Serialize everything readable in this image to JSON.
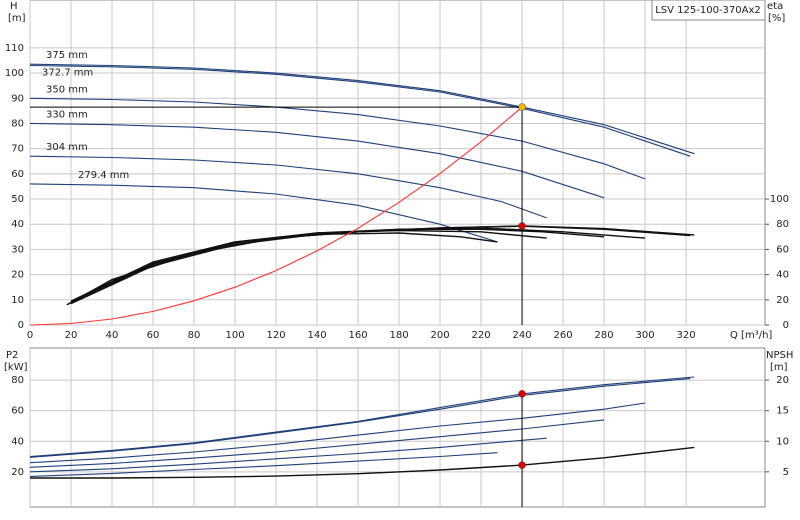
{
  "chart_data": [
    {
      "type": "line",
      "title": "LSV 125-100-370Ax2",
      "x_label": "Q [m³/h]",
      "y_label": "H",
      "y_unit": "[m]",
      "y2_label": "eta",
      "y2_unit": "[%]",
      "xlim": [
        0,
        358.5
      ],
      "xticks": [
        0,
        20,
        40,
        60,
        80,
        100,
        120,
        140,
        160,
        180,
        200,
        220,
        240,
        260,
        280,
        300,
        320
      ],
      "ylim": [
        0,
        129
      ],
      "yticks": [
        0,
        10,
        20,
        30,
        40,
        50,
        60,
        70,
        80,
        90,
        100,
        110
      ],
      "y2lim": [
        0,
        258
      ],
      "y2ticks": [
        0,
        20,
        40,
        60,
        80,
        100
      ],
      "grid": true,
      "series": [
        {
          "name": "375 mm",
          "color": "#1f3f7a",
          "x": [
            0,
            40,
            80,
            120,
            160,
            200,
            240,
            280,
            324
          ],
          "values": [
            103.5,
            103,
            102,
            100,
            97,
            93,
            86.5,
            79.5,
            68
          ]
        },
        {
          "name": "372.7 mm",
          "color": "#1f3f7a",
          "x": [
            0,
            40,
            80,
            120,
            160,
            200,
            240,
            280,
            322
          ],
          "values": [
            103,
            102.5,
            101.5,
            99.5,
            96.5,
            92.5,
            86,
            78.5,
            67
          ]
        },
        {
          "name": "350 mm",
          "color": "#1f3f7a",
          "x": [
            0,
            40,
            80,
            120,
            160,
            200,
            240,
            280,
            300
          ],
          "values": [
            90,
            89.5,
            88.5,
            86.5,
            83.5,
            79,
            73,
            64,
            58
          ]
        },
        {
          "name": "330 mm",
          "color": "#1f3f7a",
          "x": [
            0,
            40,
            80,
            120,
            160,
            200,
            240,
            280
          ],
          "values": [
            80,
            79.5,
            78.5,
            76.5,
            73,
            68,
            61,
            50.5
          ]
        },
        {
          "name": "304 mm",
          "color": "#1f3f7a",
          "x": [
            0,
            40,
            80,
            120,
            160,
            200,
            230,
            252
          ],
          "values": [
            67,
            66.5,
            65.5,
            63.5,
            60,
            54.5,
            49,
            42.5
          ]
        },
        {
          "name": "279.4 mm",
          "color": "#1f3f7a",
          "x": [
            0,
            40,
            80,
            120,
            160,
            200,
            228
          ],
          "values": [
            56,
            55.5,
            54.5,
            52,
            47.5,
            40,
            33
          ]
        },
        {
          "color": "#111111",
          "axis": "y2",
          "x": [
            18,
            40,
            80,
            120,
            160,
            200,
            240,
            280,
            324
          ],
          "values": [
            16,
            36,
            57,
            69,
            74,
            77,
            78.6,
            76.5,
            71.5
          ]
        },
        {
          "color": "#111111",
          "axis": "y2",
          "x": [
            18,
            40,
            80,
            120,
            160,
            200,
            240,
            280,
            322
          ],
          "values": [
            16,
            36,
            57,
            69,
            74,
            77,
            78.4,
            76,
            71
          ]
        },
        {
          "color": "#111111",
          "axis": "y2",
          "x": [
            20,
            60,
            100,
            140,
            180,
            220,
            260,
            300
          ],
          "values": [
            17,
            47,
            64,
            72,
            76,
            77,
            74,
            69
          ]
        },
        {
          "color": "#111111",
          "axis": "y2",
          "x": [
            20,
            60,
            100,
            140,
            180,
            220,
            250,
            280
          ],
          "values": [
            18,
            48,
            65,
            73,
            76,
            76,
            74,
            70
          ]
        },
        {
          "color": "#111111",
          "axis": "y2",
          "x": [
            20,
            60,
            100,
            140,
            180,
            220,
            252
          ],
          "values": [
            18,
            49,
            66,
            73,
            75,
            74,
            69
          ]
        },
        {
          "color": "#111111",
          "axis": "y2",
          "x": [
            20,
            60,
            100,
            140,
            180,
            210,
            228
          ],
          "values": [
            19,
            50,
            66,
            72,
            73,
            70,
            66
          ]
        },
        {
          "color": "#ff3333",
          "x": [
            0,
            20,
            40,
            60,
            80,
            100,
            120,
            140,
            160,
            180,
            200,
            220,
            240
          ],
          "values": [
            0,
            0.6,
            2.4,
            5.4,
            9.6,
            15,
            21.6,
            29.4,
            38.4,
            48.7,
            60.1,
            72.7,
            86.5
          ]
        }
      ],
      "markers": [
        {
          "x": 240,
          "y": 86.5,
          "color": "#f5b800"
        },
        {
          "x": 240,
          "y": 78.6,
          "axis": "y2",
          "color": "#e00000"
        }
      ]
    },
    {
      "type": "line",
      "y_label": "P2",
      "y_unit": "[kW]",
      "y2_label": "NPSH",
      "y2_unit": "[m]",
      "xlim": [
        0,
        358.5
      ],
      "xticks": [
        0,
        20,
        40,
        60,
        80,
        100,
        120,
        140,
        160,
        180,
        200,
        220,
        240,
        260,
        280,
        300,
        320
      ],
      "ylim": [
        -3,
        101
      ],
      "yticks": [
        20,
        40,
        60,
        80
      ],
      "y2lim": [
        -0.75,
        25.25
      ],
      "y2ticks": [
        5,
        10,
        15,
        20
      ],
      "grid": true,
      "series": [
        {
          "color": "#1f3f7a",
          "x": [
            0,
            40,
            80,
            120,
            160,
            200,
            240,
            280,
            324
          ],
          "values": [
            30,
            34,
            39,
            46,
            53,
            62,
            71,
            77,
            82
          ]
        },
        {
          "color": "#1f3f7a",
          "x": [
            0,
            40,
            80,
            120,
            160,
            200,
            240,
            280,
            322
          ],
          "values": [
            29.5,
            33.5,
            38.5,
            45.5,
            52.5,
            61,
            70,
            76,
            81
          ]
        },
        {
          "color": "#1f3f7a",
          "x": [
            0,
            40,
            80,
            120,
            160,
            200,
            240,
            280,
            300
          ],
          "values": [
            26,
            29,
            33,
            38,
            44,
            50,
            55,
            61,
            65
          ]
        },
        {
          "color": "#1f3f7a",
          "x": [
            0,
            40,
            80,
            120,
            160,
            200,
            240,
            280
          ],
          "values": [
            23,
            25.5,
            29,
            33,
            38,
            43,
            48,
            54
          ]
        },
        {
          "color": "#1f3f7a",
          "x": [
            0,
            40,
            80,
            120,
            160,
            200,
            252
          ],
          "values": [
            20,
            22,
            25,
            28.5,
            32,
            36,
            42
          ]
        },
        {
          "color": "#1f3f7a",
          "x": [
            0,
            40,
            80,
            120,
            160,
            200,
            228
          ],
          "values": [
            17,
            19,
            21.5,
            24,
            27,
            30,
            32.5
          ]
        },
        {
          "color": "#111111",
          "axis": "y2",
          "x": [
            0,
            40,
            80,
            120,
            160,
            200,
            240,
            280,
            324
          ],
          "values": [
            4,
            4,
            4.1,
            4.3,
            4.7,
            5.3,
            6.1,
            7.3,
            9
          ]
        }
      ],
      "markers": [
        {
          "x": 240,
          "y": 71,
          "color": "#e00000"
        },
        {
          "x": 240,
          "y": 6.1,
          "axis": "y2",
          "color": "#e00000"
        }
      ]
    }
  ]
}
